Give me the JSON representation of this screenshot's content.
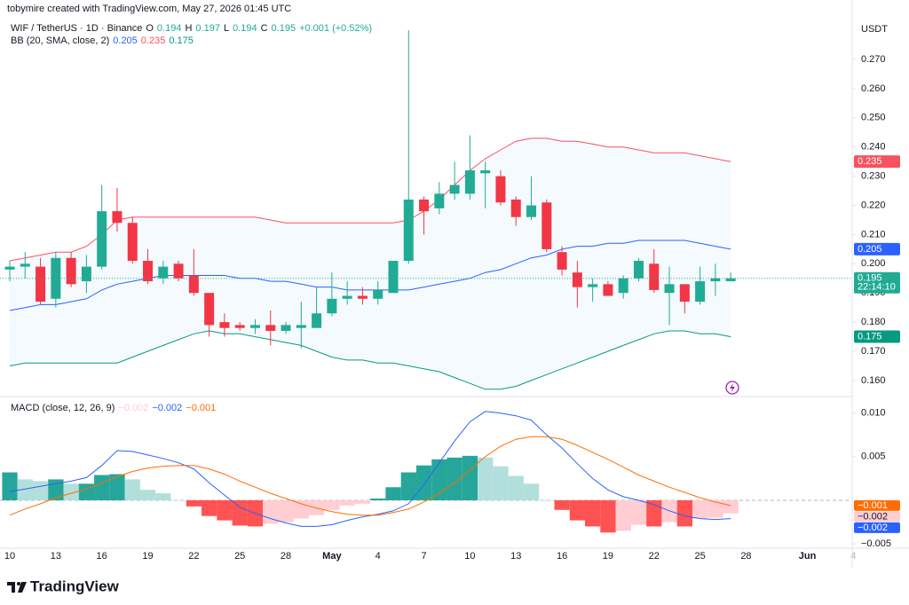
{
  "header": "tobymire created with TradingView.com, May 27, 2026 01:45 UTC",
  "currency": "USDT",
  "logo": "TradingView",
  "chart_data": [
    {
      "type": "candlestick",
      "title": "WIF / TetherUS · 1D · Binance",
      "legend": [
        {
          "key": "O",
          "label": "0.194"
        },
        {
          "key": "H",
          "label": "0.197"
        },
        {
          "key": "L",
          "label": "0.194"
        },
        {
          "key": "C",
          "label": "0.195"
        }
      ],
      "change": "+0.001 (+0.52%)",
      "up_color": "#22ab94",
      "down_color": "#f23645",
      "countdown": "22:14:10",
      "categories": [
        "10",
        null,
        null,
        "13",
        null,
        null,
        "16",
        null,
        null,
        "19",
        null,
        null,
        "22",
        null,
        null,
        "25",
        null,
        null,
        "28",
        null,
        null,
        "May",
        null,
        null,
        "4",
        null,
        null,
        "7",
        null,
        null,
        "10",
        null,
        null,
        "13",
        null,
        null,
        "16",
        null,
        null,
        "19",
        null,
        null,
        "22",
        null,
        null,
        "25",
        null,
        null,
        "28",
        null,
        null,
        null,
        "Jun",
        null,
        null,
        "4"
      ],
      "open": [
        0.198,
        0.199,
        0.199,
        0.188,
        0.202,
        0.194,
        0.199,
        0.218,
        0.214,
        0.201,
        0.195,
        0.2,
        0.196,
        0.19,
        0.18,
        0.179,
        0.178,
        0.179,
        0.177,
        0.178,
        0.178,
        0.183,
        0.188,
        0.189,
        0.188,
        0.19,
        0.201,
        0.222,
        0.219,
        0.224,
        0.224,
        0.231,
        0.23,
        0.222,
        0.216,
        0.221,
        0.204,
        0.197,
        0.192,
        0.193,
        0.19,
        0.195,
        0.2,
        0.19,
        0.193,
        0.187,
        0.194,
        0.194,
        null,
        null,
        null,
        null,
        null,
        null,
        null,
        null
      ],
      "high": [
        0.201,
        0.204,
        0.202,
        0.204,
        0.204,
        0.203,
        0.227,
        0.226,
        0.216,
        0.205,
        0.201,
        0.201,
        0.205,
        0.19,
        0.183,
        0.18,
        0.181,
        0.184,
        0.18,
        0.187,
        0.192,
        0.197,
        0.194,
        0.192,
        0.194,
        0.201,
        0.28,
        0.223,
        0.228,
        0.235,
        0.244,
        0.235,
        0.232,
        0.223,
        0.23,
        0.222,
        0.206,
        0.201,
        0.195,
        0.194,
        0.196,
        0.202,
        0.205,
        0.199,
        0.193,
        0.199,
        0.2,
        0.197,
        null,
        null,
        null,
        null,
        null,
        null,
        null,
        null
      ],
      "low": [
        0.194,
        0.195,
        0.186,
        0.185,
        0.192,
        0.19,
        0.198,
        0.211,
        0.2,
        0.193,
        0.193,
        0.194,
        0.189,
        0.175,
        0.175,
        0.177,
        0.176,
        0.172,
        0.176,
        0.171,
        0.178,
        0.182,
        0.186,
        0.186,
        0.186,
        0.19,
        0.2,
        0.21,
        0.217,
        0.222,
        0.222,
        0.219,
        0.22,
        0.213,
        0.215,
        0.204,
        0.196,
        0.185,
        0.187,
        0.189,
        0.188,
        0.194,
        0.19,
        0.179,
        0.183,
        0.186,
        0.189,
        0.194,
        null,
        null,
        null,
        null,
        null,
        null,
        null,
        null
      ],
      "close": [
        0.199,
        0.2,
        0.187,
        0.202,
        0.193,
        0.199,
        0.218,
        0.214,
        0.201,
        0.194,
        0.199,
        0.195,
        0.19,
        0.179,
        0.178,
        0.178,
        0.179,
        0.177,
        0.179,
        0.179,
        0.183,
        0.188,
        0.189,
        0.188,
        0.191,
        0.201,
        0.222,
        0.218,
        0.224,
        0.227,
        0.232,
        0.232,
        0.221,
        0.216,
        0.22,
        0.205,
        0.198,
        0.192,
        0.193,
        0.189,
        0.195,
        0.201,
        0.191,
        0.193,
        0.187,
        0.194,
        0.195,
        0.195,
        null,
        null,
        null,
        null,
        null,
        null,
        null,
        null
      ],
      "indicator": "BB (20, SMA, close, 2)",
      "band_fill": "rgba(33,150,243,0.05)",
      "series": [
        {
          "name": "Basis",
          "color": "#2962ff",
          "last_label": "0.205",
          "values": [
            0.184,
            0.185,
            0.186,
            0.186,
            0.187,
            0.188,
            0.191,
            0.193,
            0.194,
            0.195,
            0.196,
            0.196,
            0.196,
            0.196,
            0.196,
            0.195,
            0.195,
            0.194,
            0.194,
            0.193,
            0.192,
            0.192,
            0.191,
            0.191,
            0.191,
            0.191,
            0.191,
            0.192,
            0.193,
            0.194,
            0.195,
            0.197,
            0.198,
            0.2,
            0.202,
            0.203,
            0.205,
            0.206,
            0.206,
            0.207,
            0.207,
            0.208,
            0.208,
            0.208,
            0.208,
            0.207,
            0.206,
            0.205,
            null,
            null,
            null,
            null,
            null,
            null,
            null,
            null
          ]
        },
        {
          "name": "Upper",
          "color": "#f7525f",
          "last_label": "0.235",
          "values": [
            0.201,
            0.202,
            0.203,
            0.204,
            0.204,
            0.206,
            0.21,
            0.215,
            0.216,
            0.216,
            0.216,
            0.216,
            0.216,
            0.216,
            0.216,
            0.216,
            0.216,
            0.215,
            0.214,
            0.214,
            0.214,
            0.214,
            0.214,
            0.214,
            0.214,
            0.214,
            0.215,
            0.218,
            0.222,
            0.227,
            0.232,
            0.236,
            0.239,
            0.242,
            0.243,
            0.243,
            0.242,
            0.242,
            0.241,
            0.24,
            0.24,
            0.239,
            0.238,
            0.238,
            0.238,
            0.237,
            0.236,
            0.235,
            null,
            null,
            null,
            null,
            null,
            null,
            null,
            null
          ]
        },
        {
          "name": "Lower",
          "color": "#089981",
          "last_label": "0.175",
          "values": [
            0.165,
            0.166,
            0.166,
            0.166,
            0.166,
            0.166,
            0.166,
            0.166,
            0.168,
            0.17,
            0.172,
            0.174,
            0.176,
            0.177,
            0.176,
            0.176,
            0.175,
            0.174,
            0.173,
            0.172,
            0.17,
            0.168,
            0.167,
            0.167,
            0.166,
            0.166,
            0.165,
            0.164,
            0.163,
            0.161,
            0.159,
            0.157,
            0.157,
            0.158,
            0.16,
            0.162,
            0.164,
            0.166,
            0.168,
            0.17,
            0.172,
            0.174,
            0.176,
            0.177,
            0.177,
            0.176,
            0.176,
            0.175,
            null,
            null,
            null,
            null,
            null,
            null,
            null,
            null
          ]
        }
      ],
      "ylim": [
        0.1545,
        0.2843
      ],
      "yticks": [
        {
          "value": 0.16,
          "label": "0.160"
        },
        {
          "value": 0.17,
          "label": "0.170"
        },
        {
          "value": 0.18,
          "label": "0.180"
        },
        {
          "value": 0.19,
          "label": "0.190"
        },
        {
          "value": 0.2,
          "label": "0.200"
        },
        {
          "value": 0.21,
          "label": "0.210"
        },
        {
          "value": 0.22,
          "label": "0.220"
        },
        {
          "value": 0.23,
          "label": "0.230"
        },
        {
          "value": 0.24,
          "label": "0.240"
        },
        {
          "value": 0.25,
          "label": "0.250"
        },
        {
          "value": 0.26,
          "label": "0.260"
        },
        {
          "value": 0.27,
          "label": "0.270"
        }
      ]
    },
    {
      "type": "macd",
      "title": "MACD (close, 12, 26, 9)",
      "histogram": {
        "name": "Histogram",
        "colors": [
          "#26a69a",
          "#b2dfdb",
          "#ff5252",
          "#ffcdd2"
        ],
        "last_label": "−0.002",
        "values": [
          0.0032,
          0.0024,
          0.0022,
          0.0024,
          0.0019,
          0.0019,
          0.0029,
          0.003,
          0.0024,
          0.0012,
          0.0008,
          0.0,
          -0.0007,
          -0.0018,
          -0.0023,
          -0.0029,
          -0.003,
          -0.0027,
          -0.0025,
          -0.0021,
          -0.0017,
          -0.0011,
          -0.0006,
          -0.0004,
          0.0002,
          0.0015,
          0.0032,
          0.004,
          0.0047,
          0.0049,
          0.0051,
          0.0049,
          0.0039,
          0.0028,
          0.0019,
          0.0,
          -0.0011,
          -0.0023,
          -0.003,
          -0.0037,
          -0.0035,
          -0.0028,
          -0.003,
          -0.0025,
          -0.003,
          -0.0021,
          -0.002,
          -0.0015,
          null,
          null,
          null,
          null,
          null,
          null,
          null,
          null
        ]
      },
      "series": [
        {
          "name": "MACD",
          "color": "#2962ff",
          "last_label": "−0.002",
          "values": [
            0.001,
            0.0013,
            0.0016,
            0.0019,
            0.0022,
            0.0026,
            0.004,
            0.0057,
            0.0056,
            0.0052,
            0.0048,
            0.0043,
            0.0036,
            0.002,
            0.0006,
            -0.0008,
            -0.0015,
            -0.0021,
            -0.0026,
            -0.003,
            -0.003,
            -0.0028,
            -0.0023,
            -0.0019,
            -0.0016,
            -0.0012,
            -0.0004,
            0.0018,
            0.0043,
            0.0068,
            0.009,
            0.0102,
            0.01,
            0.0097,
            0.0092,
            0.0075,
            0.006,
            0.0042,
            0.0025,
            0.0012,
            0.0004,
            0.0,
            -0.0005,
            -0.0012,
            -0.0018,
            -0.0021,
            -0.0022,
            -0.0021,
            null,
            null,
            null,
            null,
            null,
            null,
            null,
            null
          ]
        },
        {
          "name": "Signal",
          "color": "#ff6d00",
          "last_label": "−0.001",
          "values": [
            -0.0017,
            -0.001,
            -0.0004,
            0.0003,
            0.0008,
            0.0013,
            0.002,
            0.0027,
            0.0033,
            0.0037,
            0.0039,
            0.004,
            0.004,
            0.0036,
            0.003,
            0.0022,
            0.0015,
            0.0008,
            0.0002,
            -0.0004,
            -0.0009,
            -0.0013,
            -0.0016,
            -0.0017,
            -0.0017,
            -0.0014,
            -0.001,
            -0.0002,
            0.0008,
            0.002,
            0.0035,
            0.005,
            0.0062,
            0.007,
            0.0073,
            0.0073,
            0.007,
            0.0063,
            0.0055,
            0.0047,
            0.0038,
            0.0029,
            0.0022,
            0.0015,
            0.0009,
            0.0003,
            -0.0002,
            -0.0006,
            null,
            null,
            null,
            null,
            null,
            null,
            null,
            null
          ]
        }
      ],
      "ylim": [
        -0.0055,
        0.0116
      ],
      "yticks": [
        {
          "value": -0.005,
          "label": "−0.005"
        },
        {
          "value": 0.005,
          "label": "0.005"
        },
        {
          "value": 0.01,
          "label": "0.010"
        }
      ]
    }
  ]
}
